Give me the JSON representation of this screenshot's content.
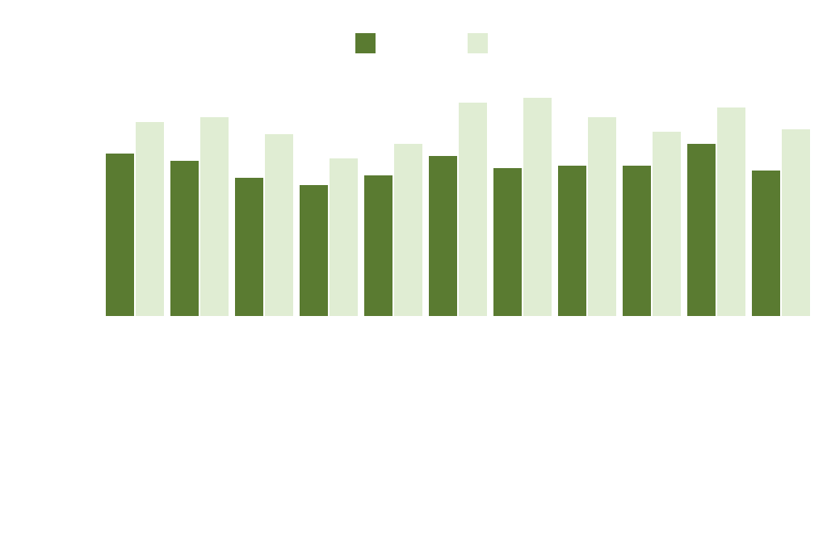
{
  "chart_data": {
    "type": "bar",
    "categories": [
      null,
      null,
      null,
      null,
      null,
      null,
      null,
      null,
      null,
      null,
      null
    ],
    "series": [
      {
        "color": "#5a7b31",
        "values": [
          67,
          64,
          57,
          54,
          58,
          66,
          61,
          62,
          62,
          71,
          60
        ]
      },
      {
        "color": "#e0edd3",
        "values": [
          80,
          82,
          75,
          65,
          71,
          88,
          90,
          82,
          76,
          86,
          77
        ]
      }
    ],
    "ylim": [
      0,
      100
    ],
    "grid": false,
    "legend": "top"
  }
}
